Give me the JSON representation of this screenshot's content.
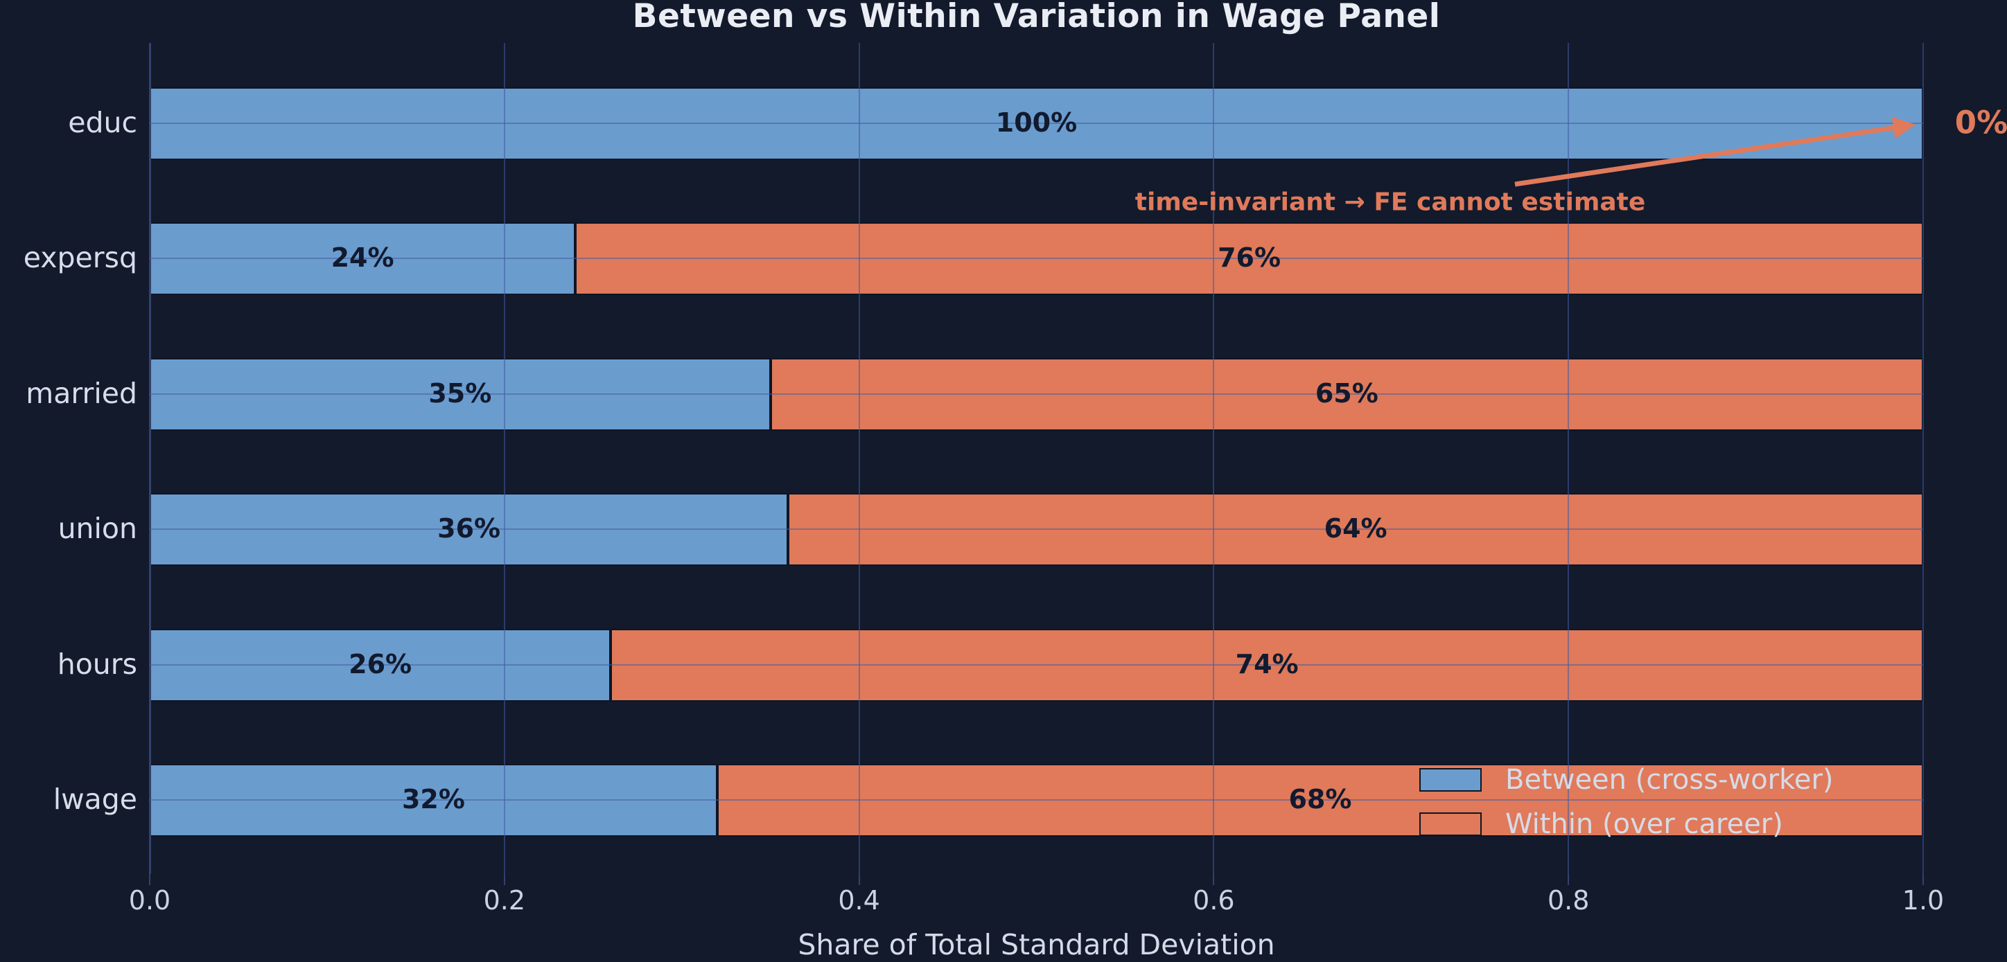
{
  "app": {
    "background_color": "#121A2C",
    "accent_blue": "#6B9CCE",
    "accent_orange": "#E07A5A",
    "text_light": "#D8DDE9",
    "text_dark": "#111A2E"
  },
  "chart_data": {
    "type": "bar",
    "orientation": "horizontal",
    "stacked": true,
    "title": "Between vs Within Variation in Wage Panel",
    "xlabel": "Share of Total Standard Deviation",
    "ylabel": "",
    "xlim": [
      0.0,
      1.0
    ],
    "xticks": [
      "0.0",
      "0.2",
      "0.4",
      "0.6",
      "0.8",
      "1.0"
    ],
    "grid": true,
    "legend_position": "lower right",
    "categories": [
      "educ",
      "expersq",
      "married",
      "union",
      "hours",
      "lwage"
    ],
    "series": [
      {
        "name": "Between (cross-worker)",
        "color": "#6B9CCE",
        "values": [
          1.0,
          0.24,
          0.35,
          0.36,
          0.26,
          0.32
        ],
        "labels": [
          "100%",
          "24%",
          "35%",
          "36%",
          "26%",
          "32%"
        ]
      },
      {
        "name": "Within (over career)",
        "color": "#E07A5A",
        "values": [
          0.0,
          0.76,
          0.65,
          0.64,
          0.74,
          0.68
        ],
        "labels": [
          "0%",
          "76%",
          "65%",
          "64%",
          "74%",
          "68%"
        ]
      }
    ],
    "annotation": {
      "text": "time-invariant → FE cannot estimate",
      "color": "#E07A5A",
      "points_to": "educ bar right end (x = 1.0)"
    },
    "outside_label": {
      "text": "0%",
      "row": "educ",
      "color": "#E07A5A"
    }
  }
}
